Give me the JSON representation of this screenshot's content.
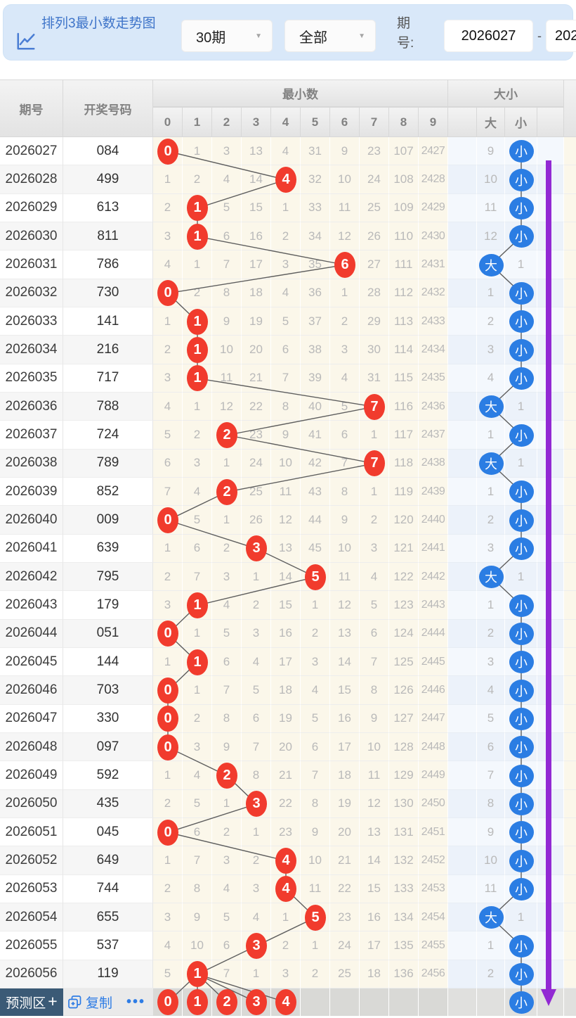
{
  "header": {
    "title": "排列3最小数走势图",
    "period_select": "30期",
    "filter_select": "全部",
    "period_label": "期号:",
    "period_from": "2026027",
    "dash": "-",
    "period_to": "202"
  },
  "table": {
    "col_period": "期号",
    "col_numbers": "开奖号码",
    "group_min": "最小数",
    "group_size": "大小",
    "digit_headers": [
      "0",
      "1",
      "2",
      "3",
      "4",
      "5",
      "6",
      "7",
      "8",
      "9"
    ],
    "size_headers": [
      "大",
      "小"
    ],
    "rows": [
      {
        "period": "2026027",
        "draw": "084",
        "min": [
          "0",
          "1",
          "3",
          "13",
          "4",
          "31",
          "9",
          "23",
          "107",
          "2427"
        ],
        "hit": 0,
        "size": "小",
        "size_miss": "9"
      },
      {
        "period": "2026028",
        "draw": "499",
        "min": [
          "1",
          "2",
          "4",
          "14",
          "4",
          "32",
          "10",
          "24",
          "108",
          "2428"
        ],
        "hit": 4,
        "size": "小",
        "size_miss": "10"
      },
      {
        "period": "2026029",
        "draw": "613",
        "min": [
          "2",
          "1",
          "5",
          "15",
          "1",
          "33",
          "11",
          "25",
          "109",
          "2429"
        ],
        "hit": 1,
        "size": "小",
        "size_miss": "11"
      },
      {
        "period": "2026030",
        "draw": "811",
        "min": [
          "3",
          "1",
          "6",
          "16",
          "2",
          "34",
          "12",
          "26",
          "110",
          "2430"
        ],
        "hit": 1,
        "size": "小",
        "size_miss": "12"
      },
      {
        "period": "2026031",
        "draw": "786",
        "min": [
          "4",
          "1",
          "7",
          "17",
          "3",
          "35",
          "6",
          "27",
          "111",
          "2431"
        ],
        "hit": 6,
        "size": "大",
        "size_miss": "1"
      },
      {
        "period": "2026032",
        "draw": "730",
        "min": [
          "0",
          "2",
          "8",
          "18",
          "4",
          "36",
          "1",
          "28",
          "112",
          "2432"
        ],
        "hit": 0,
        "size": "小",
        "size_miss": "1"
      },
      {
        "period": "2026033",
        "draw": "141",
        "min": [
          "1",
          "1",
          "9",
          "19",
          "5",
          "37",
          "2",
          "29",
          "113",
          "2433"
        ],
        "hit": 1,
        "size": "小",
        "size_miss": "2"
      },
      {
        "period": "2026034",
        "draw": "216",
        "min": [
          "2",
          "1",
          "10",
          "20",
          "6",
          "38",
          "3",
          "30",
          "114",
          "2434"
        ],
        "hit": 1,
        "size": "小",
        "size_miss": "3"
      },
      {
        "period": "2026035",
        "draw": "717",
        "min": [
          "3",
          "1",
          "11",
          "21",
          "7",
          "39",
          "4",
          "31",
          "115",
          "2435"
        ],
        "hit": 1,
        "size": "小",
        "size_miss": "4"
      },
      {
        "period": "2026036",
        "draw": "788",
        "min": [
          "4",
          "1",
          "12",
          "22",
          "8",
          "40",
          "5",
          "7",
          "116",
          "2436"
        ],
        "hit": 7,
        "size": "大",
        "size_miss": "1"
      },
      {
        "period": "2026037",
        "draw": "724",
        "min": [
          "5",
          "2",
          "2",
          "23",
          "9",
          "41",
          "6",
          "1",
          "117",
          "2437"
        ],
        "hit": 2,
        "size": "小",
        "size_miss": "1"
      },
      {
        "period": "2026038",
        "draw": "789",
        "min": [
          "6",
          "3",
          "1",
          "24",
          "10",
          "42",
          "7",
          "7",
          "118",
          "2438"
        ],
        "hit": 7,
        "size": "大",
        "size_miss": "1"
      },
      {
        "period": "2026039",
        "draw": "852",
        "min": [
          "7",
          "4",
          "2",
          "25",
          "11",
          "43",
          "8",
          "1",
          "119",
          "2439"
        ],
        "hit": 2,
        "size": "小",
        "size_miss": "1"
      },
      {
        "period": "2026040",
        "draw": "009",
        "min": [
          "0",
          "5",
          "1",
          "26",
          "12",
          "44",
          "9",
          "2",
          "120",
          "2440"
        ],
        "hit": 0,
        "size": "小",
        "size_miss": "2"
      },
      {
        "period": "2026041",
        "draw": "639",
        "min": [
          "1",
          "6",
          "2",
          "3",
          "13",
          "45",
          "10",
          "3",
          "121",
          "2441"
        ],
        "hit": 3,
        "size": "小",
        "size_miss": "3"
      },
      {
        "period": "2026042",
        "draw": "795",
        "min": [
          "2",
          "7",
          "3",
          "1",
          "14",
          "5",
          "11",
          "4",
          "122",
          "2442"
        ],
        "hit": 5,
        "size": "大",
        "size_miss": "1"
      },
      {
        "period": "2026043",
        "draw": "179",
        "min": [
          "3",
          "1",
          "4",
          "2",
          "15",
          "1",
          "12",
          "5",
          "123",
          "2443"
        ],
        "hit": 1,
        "size": "小",
        "size_miss": "1"
      },
      {
        "period": "2026044",
        "draw": "051",
        "min": [
          "0",
          "1",
          "5",
          "3",
          "16",
          "2",
          "13",
          "6",
          "124",
          "2444"
        ],
        "hit": 0,
        "size": "小",
        "size_miss": "2"
      },
      {
        "period": "2026045",
        "draw": "144",
        "min": [
          "1",
          "1",
          "6",
          "4",
          "17",
          "3",
          "14",
          "7",
          "125",
          "2445"
        ],
        "hit": 1,
        "size": "小",
        "size_miss": "3"
      },
      {
        "period": "2026046",
        "draw": "703",
        "min": [
          "0",
          "1",
          "7",
          "5",
          "18",
          "4",
          "15",
          "8",
          "126",
          "2446"
        ],
        "hit": 0,
        "size": "小",
        "size_miss": "4"
      },
      {
        "period": "2026047",
        "draw": "330",
        "min": [
          "0",
          "2",
          "8",
          "6",
          "19",
          "5",
          "16",
          "9",
          "127",
          "2447"
        ],
        "hit": 0,
        "size": "小",
        "size_miss": "5"
      },
      {
        "period": "2026048",
        "draw": "097",
        "min": [
          "0",
          "3",
          "9",
          "7",
          "20",
          "6",
          "17",
          "10",
          "128",
          "2448"
        ],
        "hit": 0,
        "size": "小",
        "size_miss": "6"
      },
      {
        "period": "2026049",
        "draw": "592",
        "min": [
          "1",
          "4",
          "2",
          "8",
          "21",
          "7",
          "18",
          "11",
          "129",
          "2449"
        ],
        "hit": 2,
        "size": "小",
        "size_miss": "7"
      },
      {
        "period": "2026050",
        "draw": "435",
        "min": [
          "2",
          "5",
          "1",
          "3",
          "22",
          "8",
          "19",
          "12",
          "130",
          "2450"
        ],
        "hit": 3,
        "size": "小",
        "size_miss": "8"
      },
      {
        "period": "2026051",
        "draw": "045",
        "min": [
          "0",
          "6",
          "2",
          "1",
          "23",
          "9",
          "20",
          "13",
          "131",
          "2451"
        ],
        "hit": 0,
        "size": "小",
        "size_miss": "9"
      },
      {
        "period": "2026052",
        "draw": "649",
        "min": [
          "1",
          "7",
          "3",
          "2",
          "4",
          "10",
          "21",
          "14",
          "132",
          "2452"
        ],
        "hit": 4,
        "size": "小",
        "size_miss": "10"
      },
      {
        "period": "2026053",
        "draw": "744",
        "min": [
          "2",
          "8",
          "4",
          "3",
          "4",
          "11",
          "22",
          "15",
          "133",
          "2453"
        ],
        "hit": 4,
        "size": "小",
        "size_miss": "11"
      },
      {
        "period": "2026054",
        "draw": "655",
        "min": [
          "3",
          "9",
          "5",
          "4",
          "1",
          "5",
          "23",
          "16",
          "134",
          "2454"
        ],
        "hit": 5,
        "size": "大",
        "size_miss": "1"
      },
      {
        "period": "2026055",
        "draw": "537",
        "min": [
          "4",
          "10",
          "6",
          "3",
          "2",
          "1",
          "24",
          "17",
          "135",
          "2455"
        ],
        "hit": 3,
        "size": "小",
        "size_miss": "1"
      },
      {
        "period": "2026056",
        "draw": "119",
        "min": [
          "5",
          "1",
          "7",
          "1",
          "3",
          "2",
          "25",
          "18",
          "136",
          "2456"
        ],
        "hit": 1,
        "size": "小",
        "size_miss": "2"
      }
    ]
  },
  "footer": {
    "predict_label": "预测区",
    "plus": "+",
    "copy_label": "复制",
    "more": "•••",
    "predict_circles": [
      "0",
      "1",
      "2",
      "3",
      "4"
    ],
    "size_circle": "小"
  },
  "colors": {
    "marker_red": "#f13b2d",
    "marker_blue": "#2b7de3",
    "arrow_purple": "#9229d3",
    "topbar_blue": "#d9e8f9",
    "title_blue": "#3e74c9",
    "link_blue": "#2e7ce5",
    "line_gray": "#5e5e5e"
  }
}
